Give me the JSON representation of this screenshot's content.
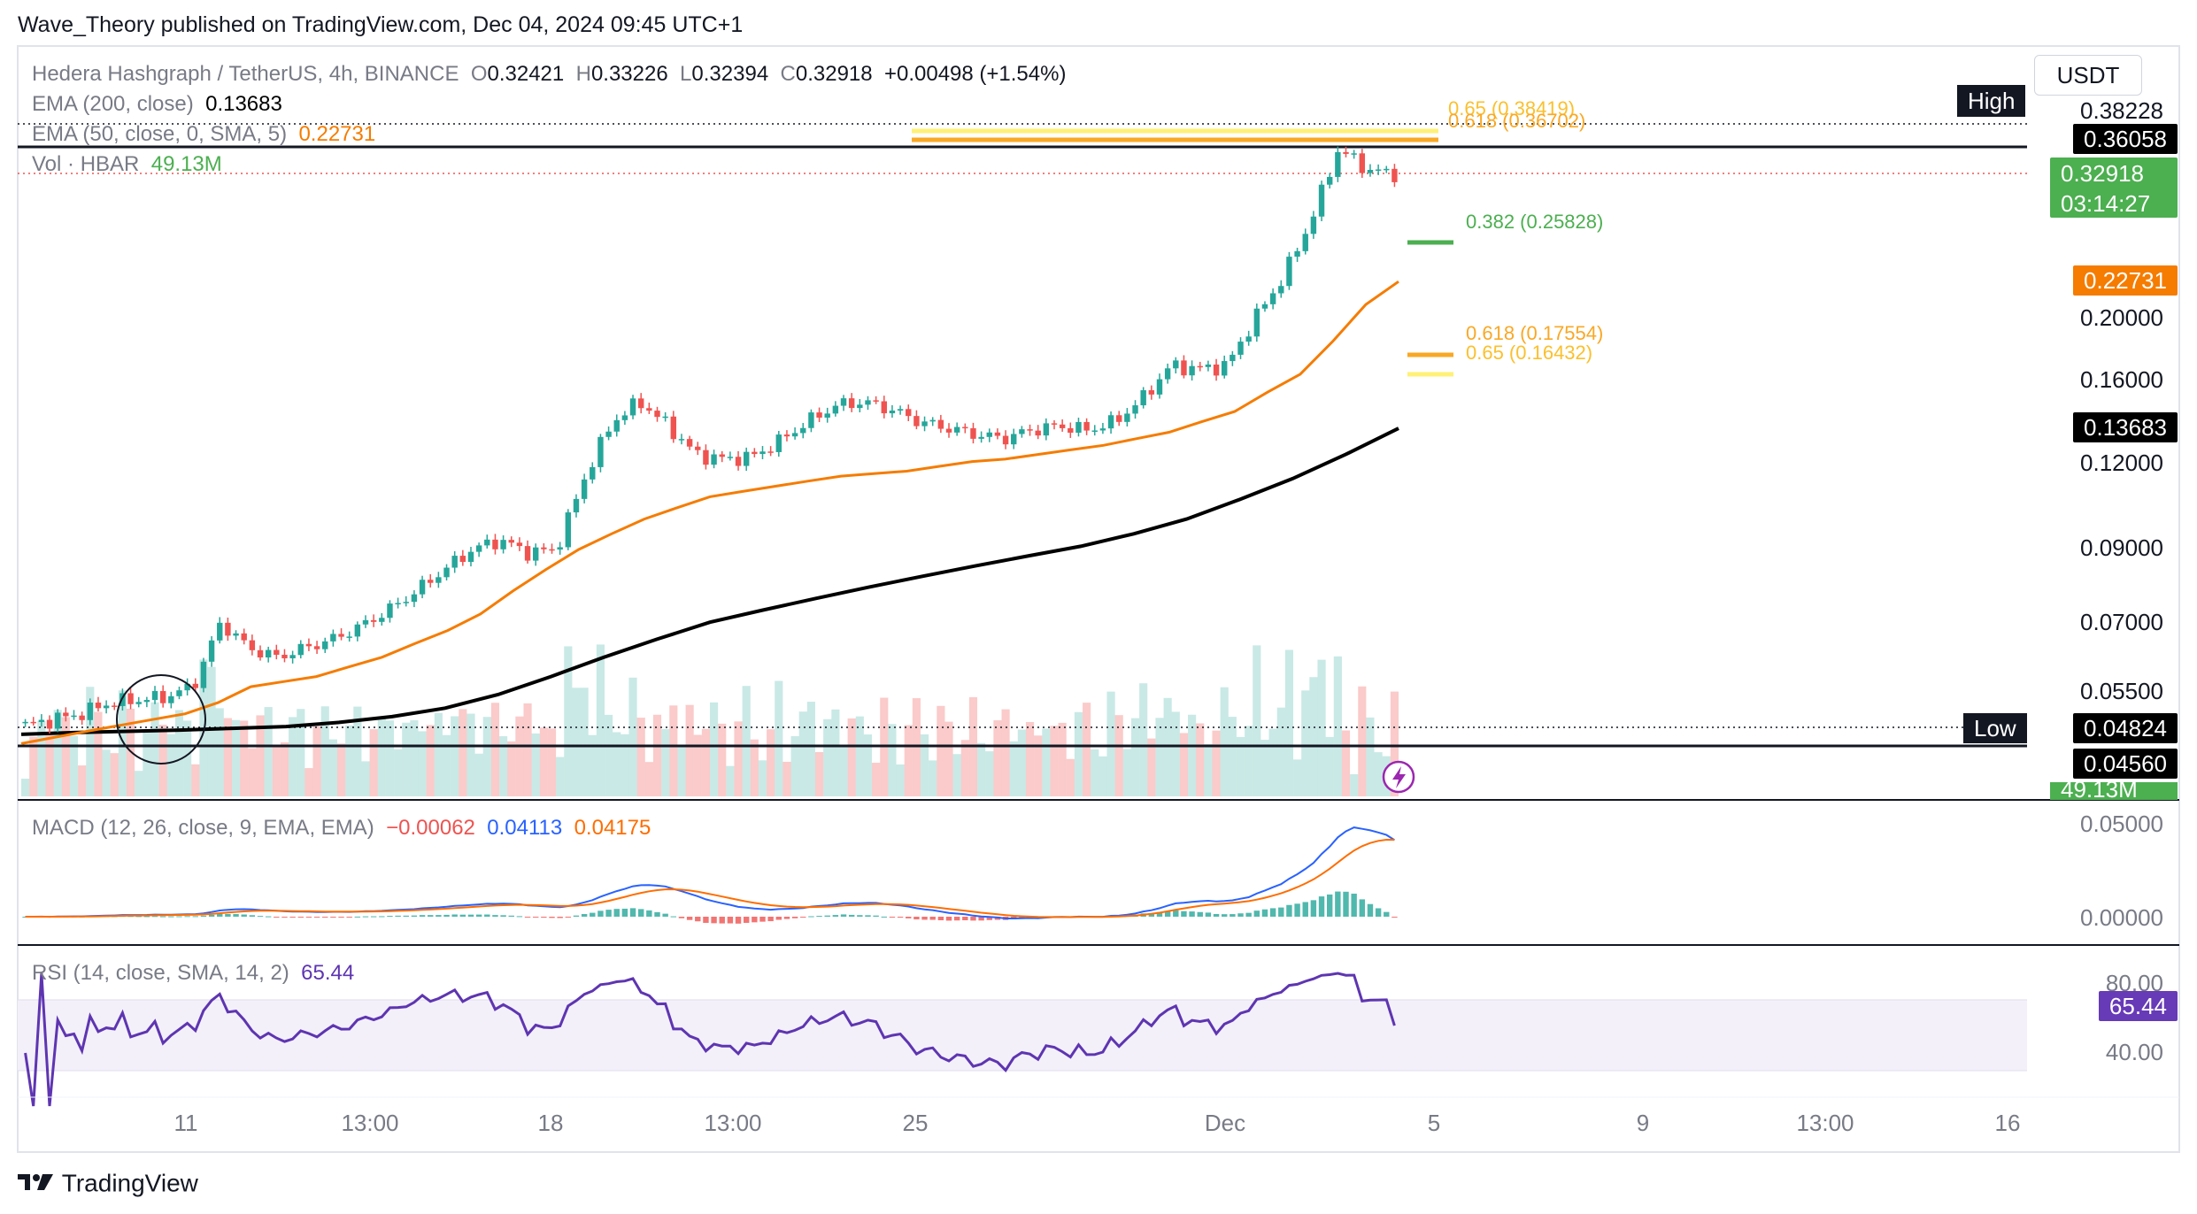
{
  "header": {
    "published": "Wave_Theory published on TradingView.com, Dec 04, 2024 09:45 UTC+1"
  },
  "legend": {
    "symbol": "Hedera Hashgraph / TetherUS, 4h, BINANCE",
    "o_label": "O",
    "o_value": "0.32421",
    "h_label": "H",
    "h_value": "0.33226",
    "l_label": "L",
    "l_value": "0.32394",
    "c_label": "C",
    "c_value": "0.32918",
    "change": "+0.00498 (+1.54%)",
    "ema200_label": "EMA (200, close)",
    "ema200_value": "0.13683",
    "ema50_label": "EMA (50, close, 0, SMA, 5)",
    "ema50_value": "0.22731",
    "vol_label": "Vol · HBAR",
    "vol_value": "49.13M"
  },
  "currency": "USDT",
  "price_axis": {
    "ticks": [
      "0.20000",
      "0.16000",
      "0.12000",
      "0.09000",
      "0.07000",
      "0.05500"
    ],
    "high_label": "High",
    "high_value": "0.36058",
    "low_label": "Low",
    "low_value": "0.04824",
    "level2_value": "0.04560",
    "last_price": "0.32918",
    "countdown": "03:14:27",
    "ema50_badge": "0.22731",
    "ema200_badge": "0.13683",
    "vol_badge": "49.13M",
    "top_partial": "0.38228"
  },
  "fib_labels": {
    "top_065": "0.65 (0.38419)",
    "top_0618": "0.618 (0.36702)",
    "mid_0382": "0.382 (0.25828)",
    "low_0618": "0.618 (0.17554)",
    "low_065": "0.65 (0.16432)"
  },
  "macd": {
    "label": "MACD (12, 26, close, 9, EMA, EMA)",
    "hist": "−0.00062",
    "macd": "0.04113",
    "signal": "0.04175",
    "ticks": [
      "0.05000",
      "0.00000"
    ]
  },
  "rsi": {
    "label": "RSI (14, close, SMA, 14, 2)",
    "value": "65.44",
    "ticks": [
      "80.00",
      "40.00"
    ],
    "badge": "65.44"
  },
  "time_axis": [
    "11",
    "13:00",
    "18",
    "13:00",
    "25",
    "Dec",
    "5",
    "9",
    "13:00",
    "16"
  ],
  "footer": {
    "brand": "TradingView"
  },
  "colors": {
    "up": "#26a69a",
    "down": "#ef5350",
    "ema50": "#f57c00",
    "ema200": "#000000",
    "fib_yellow": "#fff176",
    "fib_gold": "#f9a825",
    "fib_green": "#4caf50",
    "macd": "#2962ff",
    "signal": "#ff6d00",
    "rsi": "#7e57c2"
  },
  "chart_data": {
    "type": "candlestick",
    "symbol": "HBARUSDT",
    "timeframe": "4h",
    "last": {
      "open": 0.32421,
      "high": 0.33226,
      "low": 0.32394,
      "close": 0.32918,
      "change": 0.00498,
      "change_pct": 1.54
    },
    "ema200": 0.13683,
    "ema50": 0.22731,
    "volume_last": "49.13M",
    "range_high": 0.36058,
    "range_low": 0.04824,
    "support_level": 0.0456,
    "fib_levels": [
      {
        "ratio": 0.65,
        "price": 0.38419
      },
      {
        "ratio": 0.618,
        "price": 0.36702
      },
      {
        "ratio": 0.382,
        "price": 0.25828
      },
      {
        "ratio": 0.618,
        "price": 0.17554
      },
      {
        "ratio": 0.65,
        "price": 0.16432
      }
    ],
    "close_path": [
      0.049,
      0.05,
      0.051,
      0.053,
      0.0535,
      0.054,
      0.056,
      0.07,
      0.064,
      0.062,
      0.064,
      0.066,
      0.069,
      0.073,
      0.078,
      0.084,
      0.09,
      0.093,
      0.089,
      0.09,
      0.115,
      0.14,
      0.15,
      0.138,
      0.125,
      0.123,
      0.124,
      0.131,
      0.14,
      0.148,
      0.15,
      0.146,
      0.14,
      0.137,
      0.134,
      0.132,
      0.136,
      0.138,
      0.136,
      0.14,
      0.152,
      0.17,
      0.168,
      0.17,
      0.2,
      0.23,
      0.28,
      0.36,
      0.335,
      0.3292
    ],
    "ema50_path": [
      0.046,
      0.047,
      0.048,
      0.049,
      0.05,
      0.051,
      0.053,
      0.056,
      0.057,
      0.058,
      0.06,
      0.062,
      0.065,
      0.068,
      0.072,
      0.078,
      0.084,
      0.09,
      0.095,
      0.1,
      0.104,
      0.108,
      0.11,
      0.112,
      0.114,
      0.116,
      0.117,
      0.118,
      0.12,
      0.122,
      0.123,
      0.125,
      0.127,
      0.129,
      0.132,
      0.135,
      0.14,
      0.145,
      0.155,
      0.165,
      0.185,
      0.21,
      0.2273
    ],
    "ema200_path": [
      0.0475,
      0.0478,
      0.048,
      0.0482,
      0.0485,
      0.0488,
      0.0495,
      0.0505,
      0.052,
      0.0545,
      0.058,
      0.062,
      0.066,
      0.07,
      0.073,
      0.076,
      0.079,
      0.082,
      0.085,
      0.088,
      0.091,
      0.095,
      0.1,
      0.107,
      0.115,
      0.125,
      0.1368
    ],
    "macd_ticks": [
      0.05,
      0.0
    ],
    "macd_values": {
      "histogram": -0.00062,
      "macd": 0.04113,
      "signal": 0.04175
    },
    "rsi_value": 65.44,
    "rsi_band": [
      40,
      80
    ],
    "x_ticks": [
      "11",
      "13:00",
      "18",
      "13:00",
      "25",
      "Dec",
      "5",
      "9",
      "13:00",
      "16"
    ],
    "grid": false
  }
}
